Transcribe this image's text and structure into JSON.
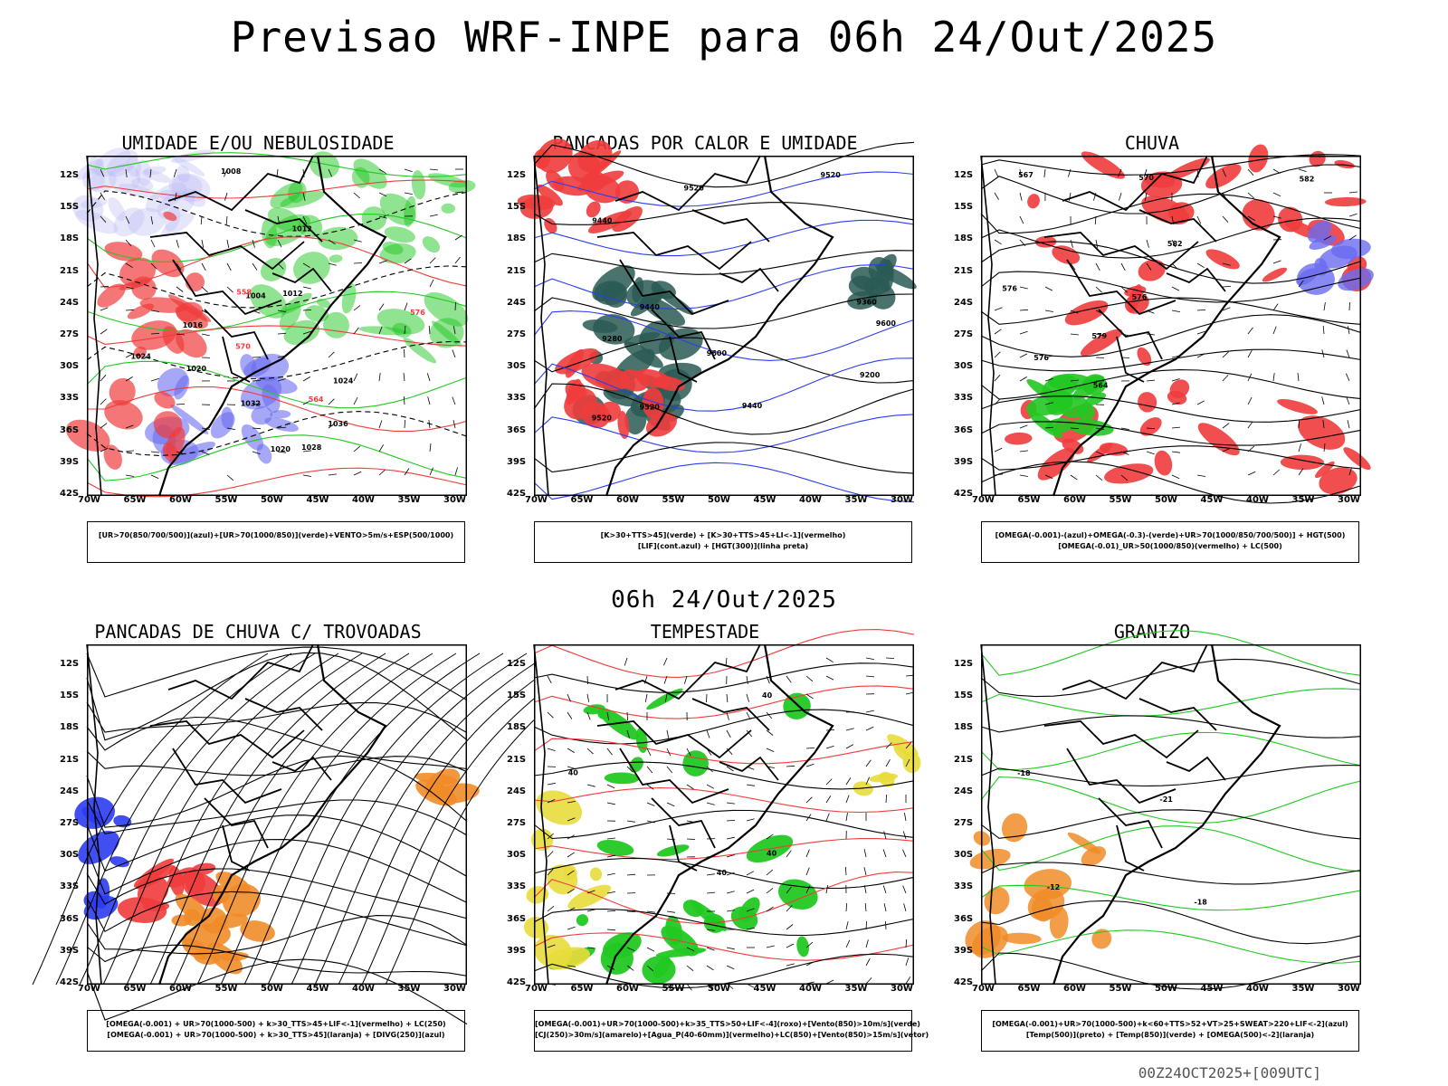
{
  "header": {
    "title": "Previsao WRF-INPE  para 06h 24/Out/2025",
    "middle_title": "06h 24/Out/2025",
    "footer": "00Z24OCT2025+[009UTC]"
  },
  "axes": {
    "y_ticks": [
      "12S",
      "15S",
      "18S",
      "21S",
      "24S",
      "27S",
      "30S",
      "33S",
      "36S",
      "39S",
      "42S"
    ],
    "x_ticks": [
      "70W",
      "65W",
      "60W",
      "55W",
      "50W",
      "45W",
      "40W",
      "35W",
      "30W"
    ]
  },
  "colors": {
    "blue_humidity": "#6a6cf0",
    "light_blue": "#b8b8f4",
    "green": "#22c822",
    "red": "#f03c3c",
    "dark_teal": "#2a5a55",
    "orange": "#f08c28",
    "yellow": "#e8dc3c",
    "blue": "#2b3cf0"
  },
  "panels": [
    {
      "title": "UMIDADE E/OU NEBULOSIDADE",
      "legend": [
        "[UR>70(850/700/500)](azul)+[UR>70(1000/850)](verde)+VENTO>5m/s+ESP(500/1000)"
      ],
      "labels": [
        "1012",
        "1020",
        "1020",
        "1024",
        "1016",
        "1024",
        "1028",
        "1032",
        "1036",
        "1004",
        "1008",
        "1012",
        "576",
        "570",
        "564",
        "558"
      ]
    },
    {
      "title": "PANCADAS POR CALOR E UMIDADE",
      "legend": [
        "[K>30+TTS>45](verde) + [K>30+TTS>45+LI<-1](vermelho)",
        "[LIF](cont.azul) + [HGT(300)](linha preta)"
      ],
      "labels": [
        "9600",
        "9600",
        "9520",
        "9520",
        "9520",
        "9440",
        "9360",
        "9280",
        "9200",
        "9440",
        "9520",
        "9440"
      ]
    },
    {
      "title": "CHUVA",
      "legend": [
        "[OMEGA(-0.001)-(azul)+OMEGA(-0.3)-(verde)+UR>70(1000/850/700/500)] + HGT(500)",
        "[OMEGA(-0.01)_UR>50(1000/850)(vermelho) + LC(500)"
      ],
      "labels": [
        "582",
        "576",
        "576",
        "582",
        "576",
        "570",
        "564",
        "567",
        "579"
      ]
    },
    {
      "title": "PANCADAS DE CHUVA C/ TROVOADAS",
      "legend": [
        "[OMEGA(-0.001) + UR>70(1000-500) + k>30_TTS>45+LIF<-1](vermelho) + LC(250)",
        "[OMEGA(-0.001) + UR>70(1000-500) + k>30_TTS>45](laranja) + [DIVG(250)](azul)"
      ],
      "labels": []
    },
    {
      "title": "TEMPESTADE",
      "legend": [
        "[OMEGA(-0.001)+UR>70(1000-500)+k>35_TTS>50+LIF<-4](roxo)+[Vento(850)>10m/s](verde)",
        "[CJ(250)>30m/s](amarelo)+[Agua_P(40-60mm)](vermelho)+LC(850)+[Vento(850)>15m/s](vetor)"
      ],
      "labels": [
        "40",
        "40",
        "40",
        "40"
      ]
    },
    {
      "title": "GRANIZO",
      "legend": [
        "[OMEGA(-0.001)+UR>70(1000-500)+k<60+TTS>52+VT>25+SWEAT>220+LIF<-2](azul)",
        "[Temp(500)](preto) + [Temp(850)](verde) + [OMEGA(500)<-2](laranja)"
      ],
      "labels": [
        "-12",
        "-18",
        "-18",
        "-21"
      ]
    }
  ]
}
